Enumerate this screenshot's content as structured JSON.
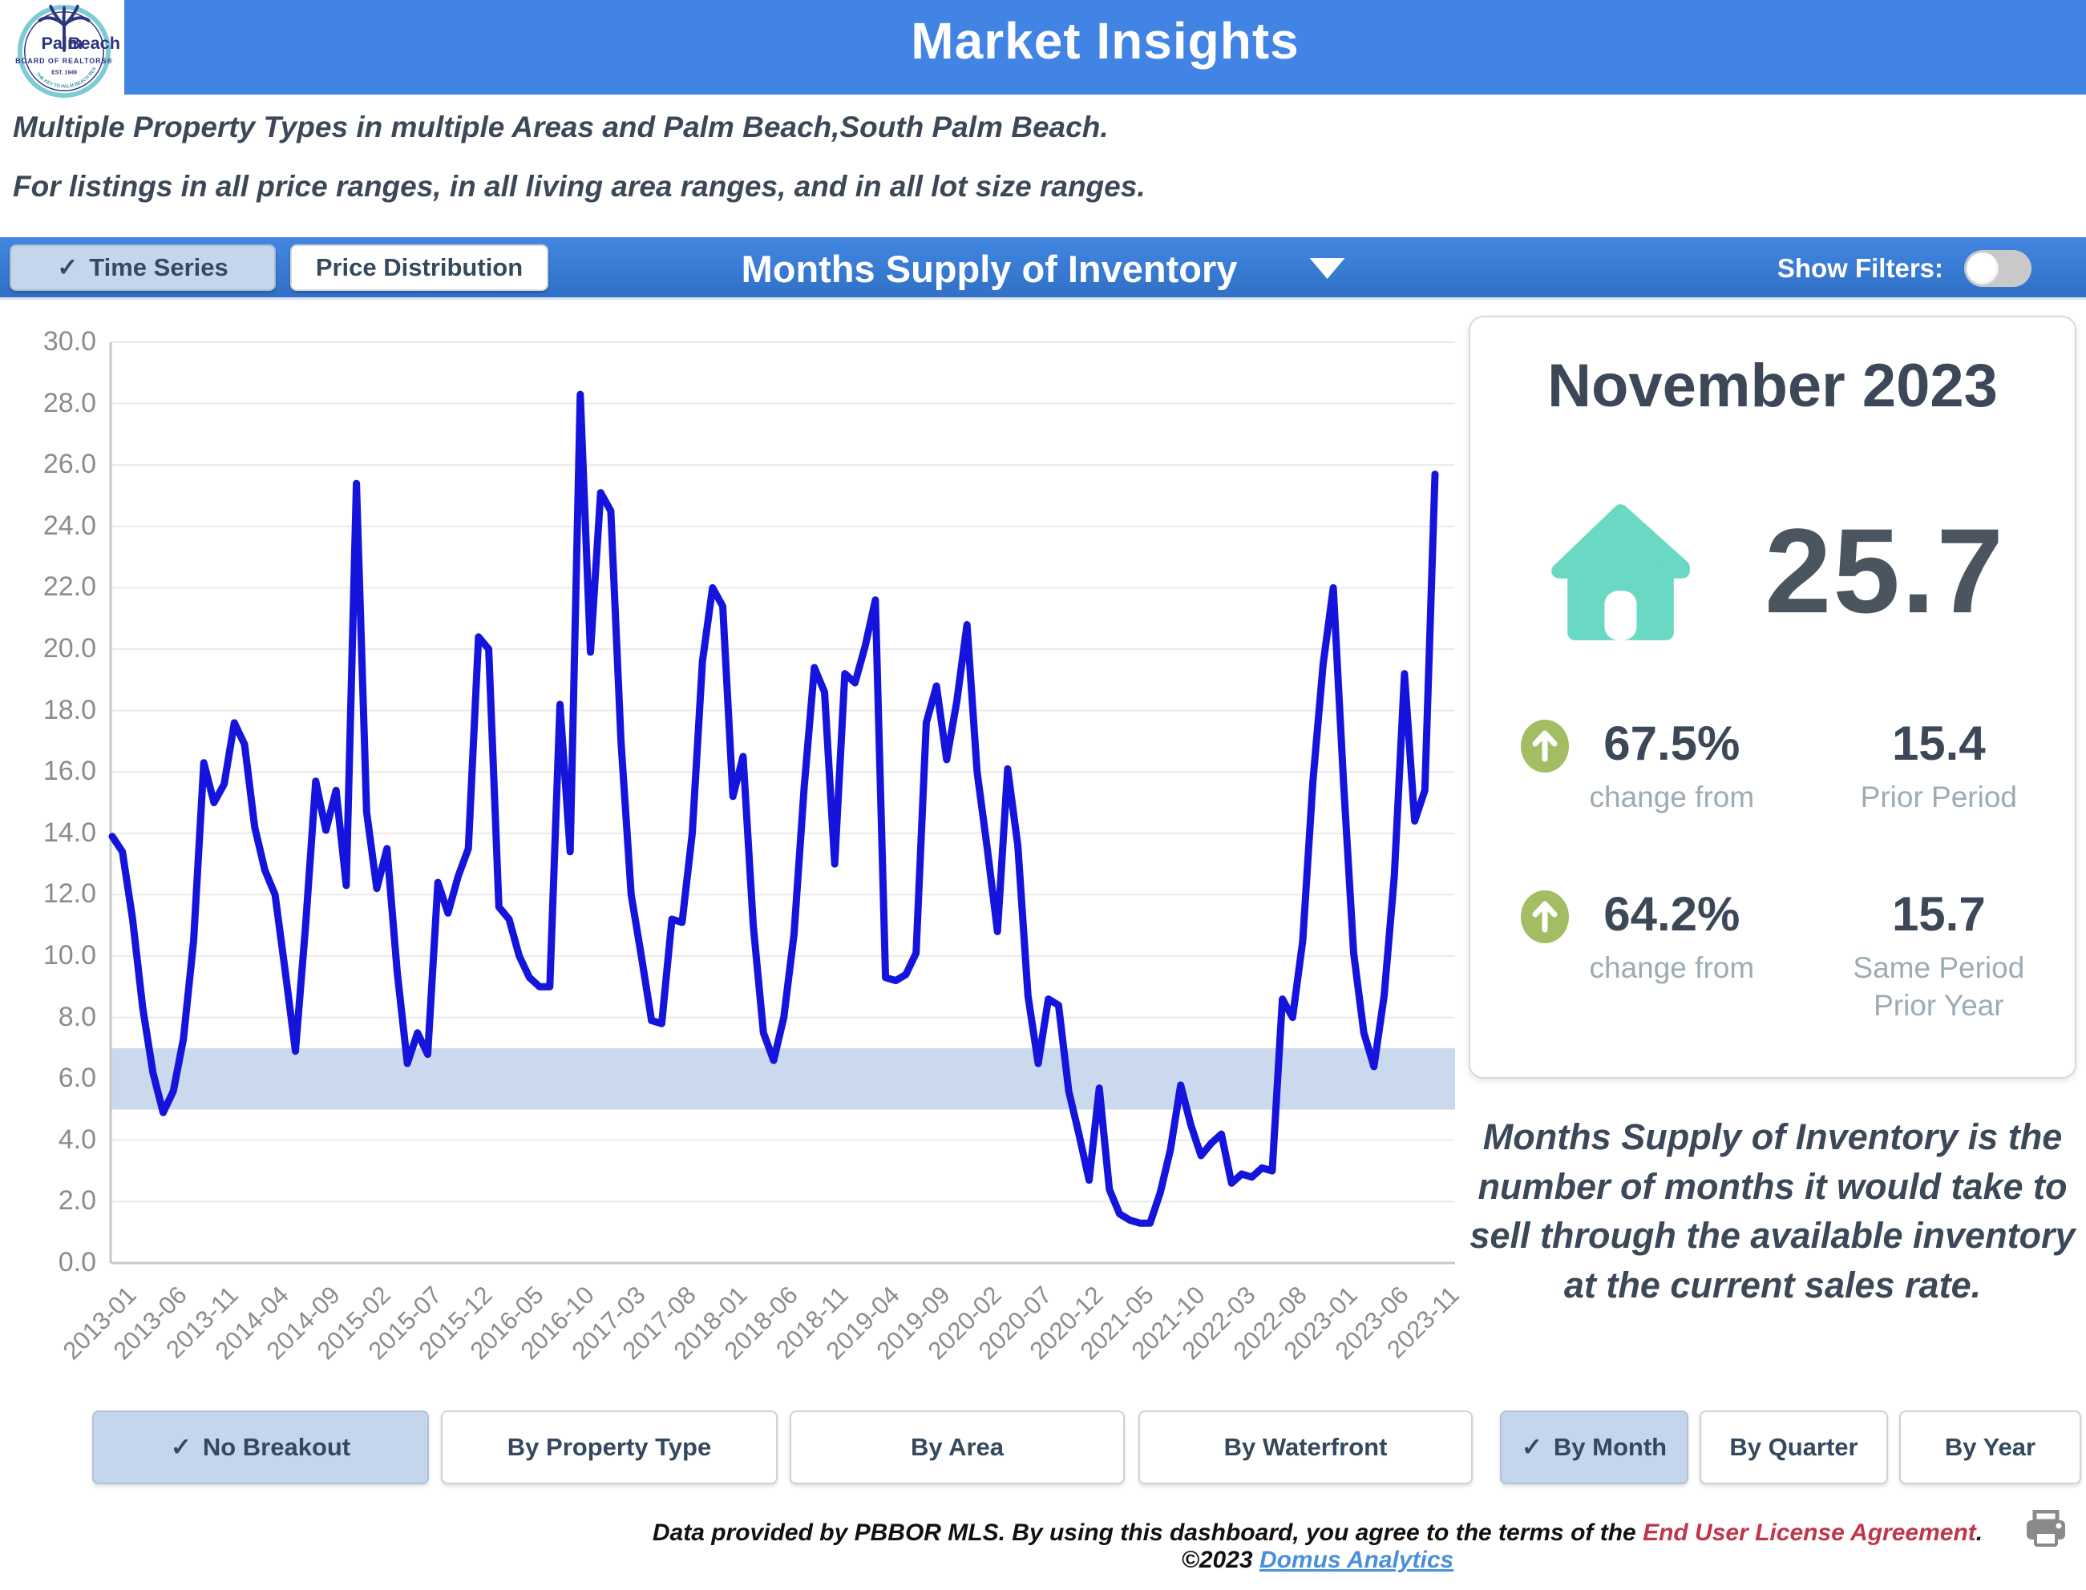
{
  "header": {
    "title": "Market Insights",
    "logo": {
      "name_top": "Palm",
      "name_bottom": "Beach",
      "line2": "BOARD OF REALTORS®",
      "line3": "EST. 1949",
      "line4": "THE KEY TO PALM BEACH REAL ESTATE"
    }
  },
  "subtitle": {
    "line1": "Multiple Property Types in multiple Areas and Palm Beach,South Palm Beach.",
    "line2": "For listings in all price ranges, in all living area ranges, and in all lot size ranges."
  },
  "toolbar": {
    "tabs": [
      {
        "label": "Time Series",
        "selected": true
      },
      {
        "label": "Price Distribution",
        "selected": false
      }
    ],
    "metric_title": "Months Supply of Inventory",
    "show_filters_label": "Show Filters:",
    "filters_on": false
  },
  "panel": {
    "period_label": "November 2023",
    "current_value": "25.7",
    "stats": [
      {
        "pct": "67.5%",
        "pct_caption": "change from",
        "value": "15.4",
        "value_caption": "Prior Period"
      },
      {
        "pct": "64.2%",
        "pct_caption": "change from",
        "value": "15.7",
        "value_caption": "Same Period\nPrior Year"
      }
    ],
    "description": "Months Supply of Inventory is the number of months it would take to sell through the available inventory at the current sales rate."
  },
  "breakout": {
    "buttons": [
      {
        "label": "No Breakout",
        "selected": true
      },
      {
        "label": "By Property Type",
        "selected": false
      },
      {
        "label": "By Area",
        "selected": false
      },
      {
        "label": "By Waterfront",
        "selected": false
      },
      {
        "label": "By Month",
        "selected": true
      },
      {
        "label": "By Quarter",
        "selected": false
      },
      {
        "label": "By Year",
        "selected": false
      }
    ]
  },
  "footer": {
    "text_prefix": "Data provided by PBBOR MLS.  By using this dashboard, you agree to the terms of the ",
    "license_link": "End User License Agreement",
    "text_mid": ".  ©2023 ",
    "analytics_link": "Domus Analytics"
  },
  "chart_data": {
    "type": "line",
    "title": "Months Supply of Inventory",
    "xlabel": "",
    "ylabel": "",
    "x_start": "2013-01",
    "x_frequency": "monthly",
    "x_tick_interval_months": 5,
    "x_tick_labels": [
      "2013-01",
      "2013-06",
      "2013-11",
      "2014-04",
      "2014-09",
      "2015-02",
      "2015-07",
      "2015-12",
      "2016-05",
      "2016-10",
      "2017-03",
      "2017-08",
      "2018-01",
      "2018-06",
      "2018-11",
      "2019-04",
      "2019-09",
      "2020-02",
      "2020-07",
      "2020-12",
      "2021-05",
      "2021-10",
      "2022-03",
      "2022-08",
      "2023-01",
      "2023-06",
      "2023-11"
    ],
    "values": [
      13.9,
      13.4,
      11.2,
      8.3,
      6.2,
      4.9,
      5.6,
      7.3,
      10.5,
      16.3,
      15.0,
      15.6,
      17.6,
      16.9,
      14.2,
      12.8,
      12.0,
      9.5,
      6.9,
      11.0,
      15.7,
      14.1,
      15.4,
      12.3,
      25.4,
      14.7,
      12.2,
      13.5,
      9.5,
      6.5,
      7.5,
      6.8,
      12.4,
      11.4,
      12.6,
      13.5,
      20.4,
      20.0,
      11.6,
      11.2,
      10.0,
      9.3,
      9.0,
      9.0,
      18.2,
      13.4,
      28.3,
      19.9,
      25.1,
      24.5,
      17.0,
      12.0,
      10.0,
      7.9,
      7.8,
      11.2,
      11.1,
      14.0,
      19.6,
      22.0,
      21.4,
      15.2,
      16.5,
      11.0,
      7.5,
      6.6,
      8.0,
      10.7,
      15.5,
      19.4,
      18.6,
      13.0,
      19.2,
      18.9,
      20.1,
      21.6,
      9.3,
      9.2,
      9.4,
      10.1,
      17.6,
      18.8,
      16.4,
      18.3,
      20.8,
      16.0,
      13.5,
      10.8,
      16.1,
      13.6,
      8.7,
      6.5,
      8.6,
      8.4,
      5.6,
      4.2,
      2.7,
      5.7,
      2.4,
      1.6,
      1.4,
      1.3,
      1.3,
      2.3,
      3.7,
      5.8,
      4.5,
      3.5,
      3.9,
      4.2,
      2.6,
      2.9,
      2.8,
      3.1,
      3.0,
      8.6,
      8.0,
      10.5,
      15.7,
      19.5,
      22.0,
      15.7,
      10.1,
      7.5,
      6.4,
      8.7,
      12.6,
      19.2,
      14.4,
      15.4,
      25.7
    ],
    "ylim": [
      0,
      30
    ],
    "ytick_step": 2,
    "grid": true,
    "legend": "none",
    "highlight_band": {
      "from": 5.0,
      "to": 7.0,
      "color": "#cbd9ef"
    },
    "line_color": "#1414dd",
    "axis_color": "#c8c8c8",
    "grid_color": "#eaeaea",
    "tick_label_color": "#8c8c8c"
  }
}
